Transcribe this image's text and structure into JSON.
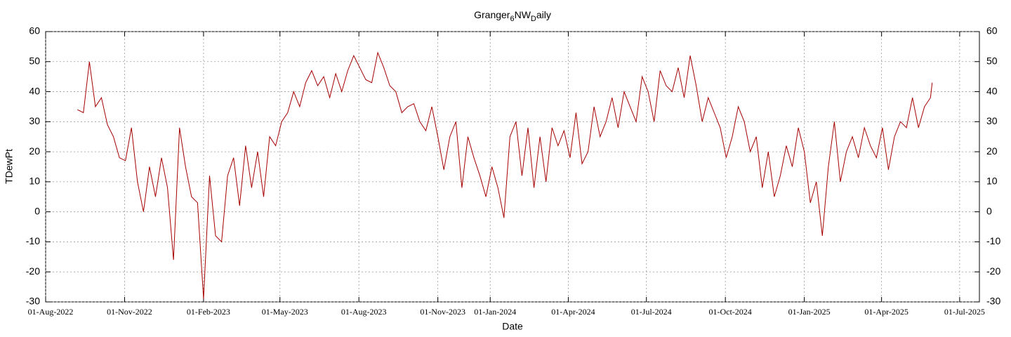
{
  "chart_data": {
    "type": "line",
    "title": [
      "Granger",
      "6",
      "NW",
      "D",
      "aily"
    ],
    "x_label": "Date",
    "y_label": "TDewPt",
    "color": "#a50000",
    "grid": true,
    "xlim": [
      "2022-08-01",
      "2025-07-24"
    ],
    "ylim": [
      -30,
      60
    ],
    "yticks": [
      -30,
      -20,
      -10,
      0,
      10,
      20,
      30,
      40,
      50,
      60
    ],
    "xticks": [
      {
        "value": "2022-08-01",
        "label": "01-Aug-2022"
      },
      {
        "value": "2022-11-01",
        "label": "01-Nov-2022"
      },
      {
        "value": "2023-02-01",
        "label": "01-Feb-2023"
      },
      {
        "value": "2023-05-01",
        "label": "01-May-2023"
      },
      {
        "value": "2023-08-01",
        "label": "01-Aug-2023"
      },
      {
        "value": "2023-11-01",
        "label": "01-Nov-2023"
      },
      {
        "value": "2024-01-01",
        "label": "01-Jan-2024"
      },
      {
        "value": "2024-04-01",
        "label": "01-Apr-2024"
      },
      {
        "value": "2024-07-01",
        "label": "01-Jul-2024"
      },
      {
        "value": "2024-10-01",
        "label": "01-Oct-2024"
      },
      {
        "value": "2025-01-01",
        "label": "01-Jan-2025"
      },
      {
        "value": "2025-04-01",
        "label": "01-Apr-2025"
      },
      {
        "value": "2025-07-01",
        "label": "01-Jul-2025"
      }
    ],
    "x": [
      "2022-09-07",
      "2022-09-14",
      "2022-09-21",
      "2022-09-28",
      "2022-10-05",
      "2022-10-12",
      "2022-10-19",
      "2022-10-26",
      "2022-11-02",
      "2022-11-09",
      "2022-11-16",
      "2022-11-23",
      "2022-11-30",
      "2022-12-07",
      "2022-12-14",
      "2022-12-21",
      "2022-12-28",
      "2023-01-04",
      "2023-01-11",
      "2023-01-18",
      "2023-01-25",
      "2023-02-01",
      "2023-02-08",
      "2023-02-15",
      "2023-02-22",
      "2023-03-01",
      "2023-03-08",
      "2023-03-15",
      "2023-03-22",
      "2023-03-29",
      "2023-04-05",
      "2023-04-12",
      "2023-04-19",
      "2023-04-26",
      "2023-05-03",
      "2023-05-10",
      "2023-05-17",
      "2023-05-24",
      "2023-05-31",
      "2023-06-07",
      "2023-06-14",
      "2023-06-21",
      "2023-06-28",
      "2023-07-05",
      "2023-07-12",
      "2023-07-19",
      "2023-07-26",
      "2023-08-02",
      "2023-08-09",
      "2023-08-16",
      "2023-08-23",
      "2023-08-30",
      "2023-09-06",
      "2023-09-13",
      "2023-09-20",
      "2023-09-27",
      "2023-10-04",
      "2023-10-11",
      "2023-10-18",
      "2023-10-25",
      "2023-11-01",
      "2023-11-08",
      "2023-11-15",
      "2023-11-22",
      "2023-11-29",
      "2023-12-06",
      "2023-12-13",
      "2023-12-20",
      "2023-12-27",
      "2024-01-03",
      "2024-01-10",
      "2024-01-17",
      "2024-01-24",
      "2024-01-31",
      "2024-02-07",
      "2024-02-14",
      "2024-02-21",
      "2024-02-28",
      "2024-03-06",
      "2024-03-13",
      "2024-03-20",
      "2024-03-27",
      "2024-04-03",
      "2024-04-10",
      "2024-04-17",
      "2024-04-24",
      "2024-05-01",
      "2024-05-08",
      "2024-05-15",
      "2024-05-22",
      "2024-05-29",
      "2024-06-05",
      "2024-06-12",
      "2024-06-19",
      "2024-06-26",
      "2024-07-03",
      "2024-07-10",
      "2024-07-17",
      "2024-07-24",
      "2024-07-31",
      "2024-08-07",
      "2024-08-14",
      "2024-08-21",
      "2024-08-28",
      "2024-09-04",
      "2024-09-11",
      "2024-09-18",
      "2024-09-25",
      "2024-10-02",
      "2024-10-09",
      "2024-10-16",
      "2024-10-23",
      "2024-10-30",
      "2024-11-06",
      "2024-11-13",
      "2024-11-20",
      "2024-11-27",
      "2024-12-04",
      "2024-12-11",
      "2024-12-18",
      "2024-12-25",
      "2025-01-01",
      "2025-01-08",
      "2025-01-15",
      "2025-01-22",
      "2025-01-29",
      "2025-02-05",
      "2025-02-12",
      "2025-02-19",
      "2025-02-26",
      "2025-03-05",
      "2025-03-12",
      "2025-03-19",
      "2025-03-26",
      "2025-04-02",
      "2025-04-09",
      "2025-04-16",
      "2025-04-23",
      "2025-04-30",
      "2025-05-07",
      "2025-05-14",
      "2025-05-21",
      "2025-05-28",
      "2025-05-30"
    ],
    "values": [
      34,
      33,
      50,
      35,
      38,
      29,
      25,
      18,
      17,
      28,
      10,
      0,
      15,
      5,
      18,
      8,
      -16,
      28,
      15,
      5,
      3,
      -29,
      12,
      -8,
      -10,
      12,
      18,
      2,
      22,
      8,
      20,
      5,
      25,
      22,
      30,
      33,
      40,
      35,
      43,
      47,
      42,
      45,
      38,
      46,
      40,
      47,
      52,
      48,
      44,
      43,
      53,
      48,
      42,
      40,
      33,
      35,
      36,
      30,
      27,
      35,
      25,
      14,
      25,
      30,
      8,
      25,
      18,
      12,
      5,
      15,
      8,
      -2,
      25,
      30,
      12,
      28,
      8,
      25,
      10,
      28,
      22,
      27,
      18,
      33,
      16,
      20,
      35,
      25,
      30,
      38,
      28,
      40,
      35,
      30,
      45,
      40,
      30,
      47,
      42,
      40,
      48,
      38,
      52,
      42,
      30,
      38,
      33,
      28,
      18,
      25,
      35,
      30,
      20,
      25,
      8,
      20,
      5,
      12,
      22,
      15,
      28,
      20,
      3,
      10,
      -8,
      15,
      30,
      10,
      20,
      25,
      18,
      28,
      22,
      18,
      28,
      14,
      25,
      30,
      28,
      38,
      28,
      35,
      38,
      43
    ]
  }
}
